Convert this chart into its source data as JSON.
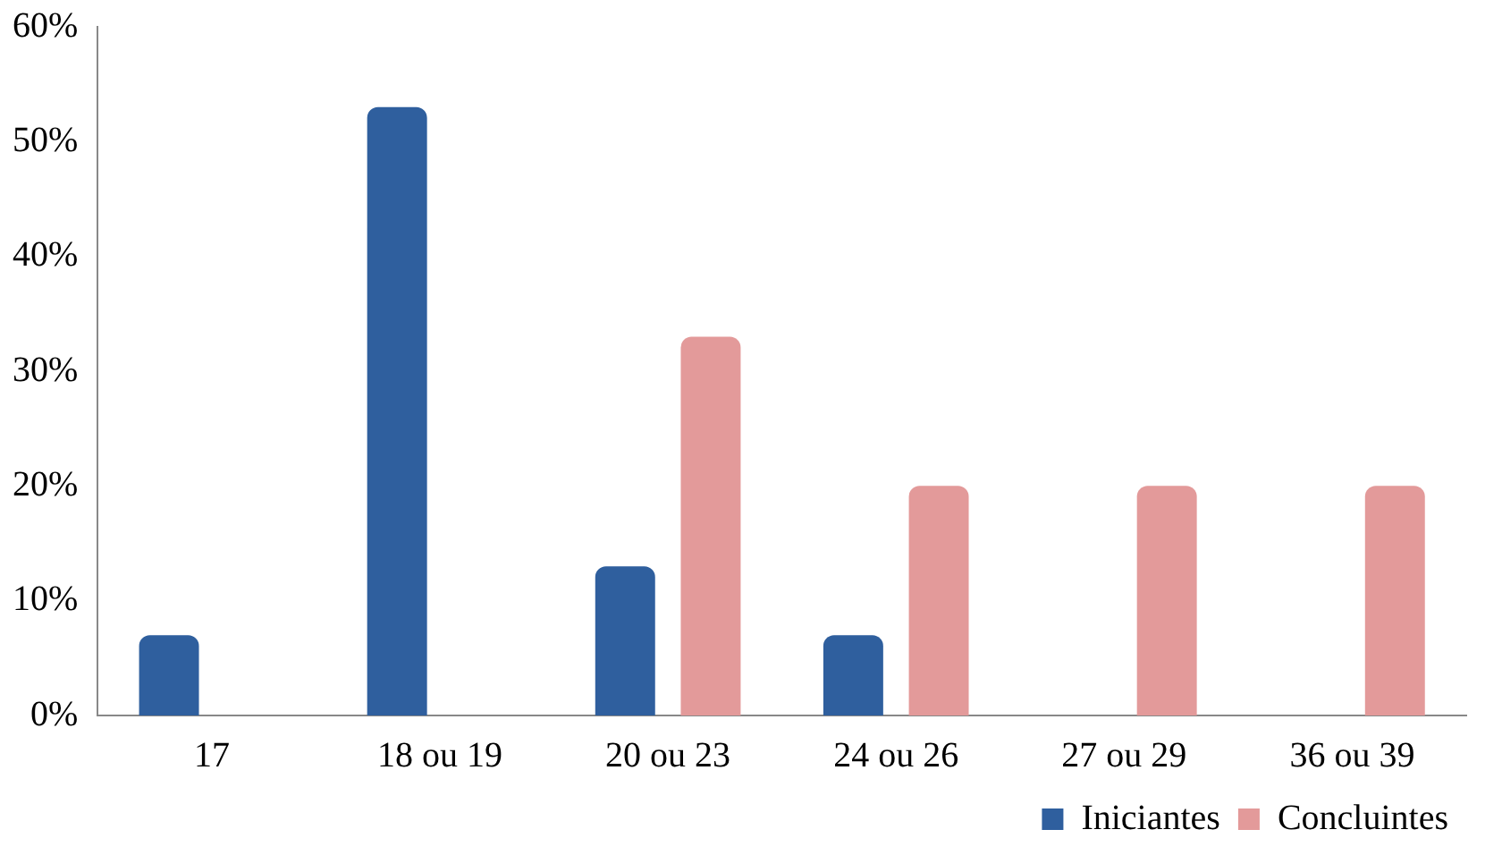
{
  "chart_data": {
    "type": "bar",
    "categories": [
      "17",
      "18 ou 19",
      "20 ou 23",
      "24 ou 26",
      "27 ou 29",
      "36 ou 39"
    ],
    "series": [
      {
        "name": "Iniciantes",
        "color": "#2f5f9e",
        "values": [
          7,
          53,
          13,
          7,
          0,
          0
        ]
      },
      {
        "name": "Concluintes",
        "color": "#e39a9a",
        "values": [
          0,
          0,
          33,
          20,
          20,
          20
        ]
      }
    ],
    "ylim": [
      0,
      60
    ],
    "yticks": [
      {
        "value": 0,
        "label": "0%"
      },
      {
        "value": 10,
        "label": "10%"
      },
      {
        "value": 20,
        "label": "20%"
      },
      {
        "value": 30,
        "label": "30%"
      },
      {
        "value": 40,
        "label": "40%"
      },
      {
        "value": 50,
        "label": "50%"
      },
      {
        "value": 60,
        "label": "60%"
      }
    ],
    "grid": false,
    "legend": "bottom right"
  }
}
